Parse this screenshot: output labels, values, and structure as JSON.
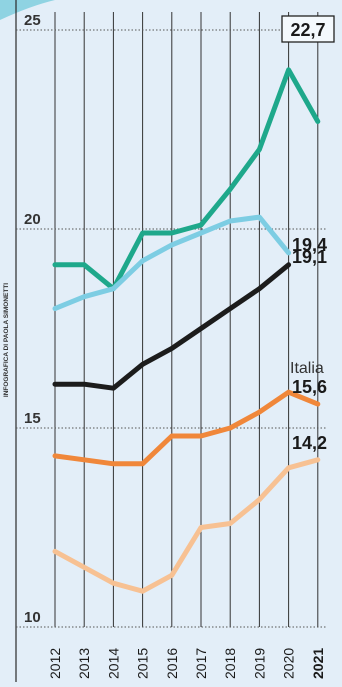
{
  "credit": "INFOGRAFICA DI PAOLA SIMONETTI",
  "chart_data": {
    "type": "line",
    "x": [
      "2012",
      "2013",
      "2014",
      "2015",
      "2016",
      "2017",
      "2018",
      "2019",
      "2020",
      "2021"
    ],
    "ylim": [
      10,
      25
    ],
    "yticks": [
      "10",
      "15",
      "20",
      "25"
    ],
    "grid": true,
    "series": [
      {
        "color": "#1ea88b",
        "values": [
          19.1,
          19.1,
          18.5,
          19.9,
          19.9,
          20.1,
          21.0,
          22.0,
          24.0,
          22.7
        ],
        "label": "22,7"
      },
      {
        "color": "#7dcde3",
        "values": [
          18.0,
          18.3,
          18.5,
          19.2,
          19.6,
          19.9,
          20.2,
          20.3,
          19.4,
          null
        ],
        "label": "19,4"
      },
      {
        "color": "#1c1c1c",
        "values": [
          16.1,
          16.1,
          16.0,
          16.6,
          17.0,
          17.5,
          18.0,
          18.5,
          19.1,
          null
        ],
        "label": "19,1"
      },
      {
        "name": "Italia",
        "color": "#f0873a",
        "values": [
          14.3,
          14.2,
          14.1,
          14.1,
          14.8,
          14.8,
          15.0,
          15.4,
          15.9,
          15.6
        ],
        "label": "15,6"
      },
      {
        "color": "#f7c193",
        "values": [
          11.9,
          11.5,
          11.1,
          10.9,
          11.3,
          12.5,
          12.6,
          13.2,
          14.0,
          14.2
        ],
        "label": "14,2"
      }
    ]
  }
}
